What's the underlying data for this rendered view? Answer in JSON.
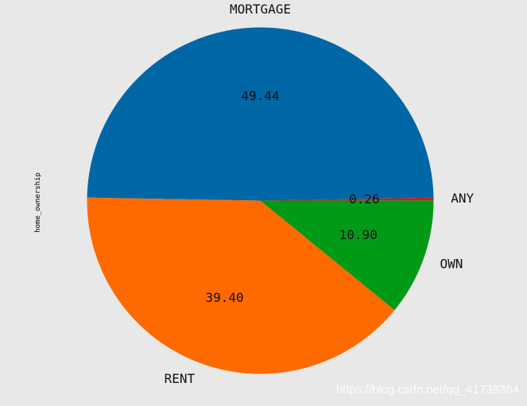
{
  "chart_data": {
    "type": "pie",
    "ylabel": "home_ownership",
    "slices": [
      {
        "label": "MORTGAGE",
        "value": 49.44,
        "value_label": "49.44",
        "color": "#0067a7"
      },
      {
        "label": "RENT",
        "value": 39.4,
        "value_label": "39.40",
        "color": "#ff6a00"
      },
      {
        "label": "OWN",
        "value": 10.9,
        "value_label": "10.90",
        "color": "#009a17"
      },
      {
        "label": "ANY",
        "value": 0.26,
        "value_label": "0.26",
        "color": "#c8201c"
      }
    ]
  },
  "watermark": "https://blog.csdn.net/qq_41739364"
}
